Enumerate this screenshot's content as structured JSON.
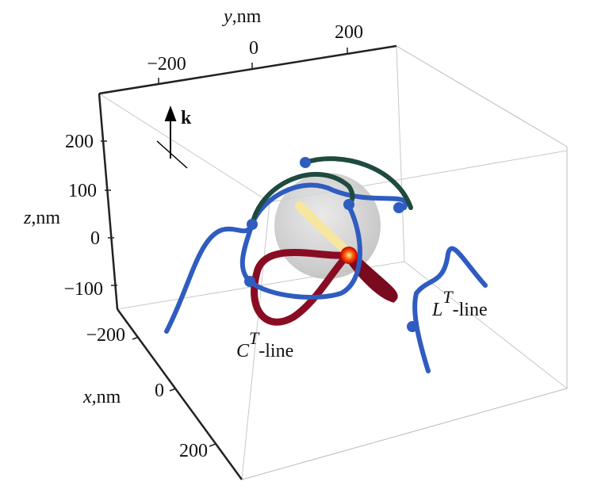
{
  "axes": {
    "y": {
      "label": {
        "var": "y",
        "unit": ",nm"
      },
      "ticks": [
        "−200",
        "0",
        "200"
      ]
    },
    "z": {
      "label": {
        "var": "z",
        "unit": ",nm"
      },
      "ticks": [
        "200",
        "100",
        "0",
        "−100",
        "−200"
      ]
    },
    "x": {
      "label": {
        "var": "x",
        "unit": ",nm"
      },
      "ticks": [
        "0",
        "200"
      ]
    }
  },
  "vector": {
    "label": "k"
  },
  "curves": [
    {
      "base": "C",
      "sup": "T",
      "rest": "-line"
    },
    {
      "base": "L",
      "sup": "T",
      "rest": "-line"
    }
  ]
}
